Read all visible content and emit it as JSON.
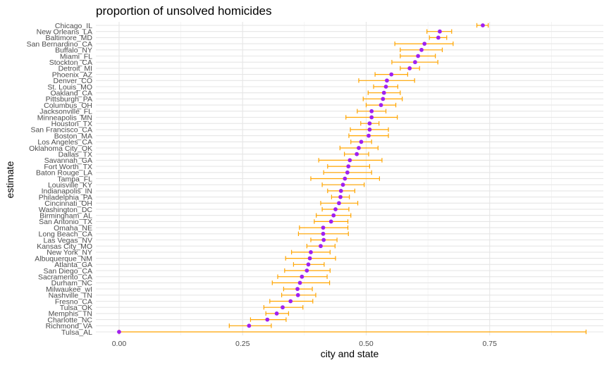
{
  "chart_data": {
    "type": "scatter",
    "title": "proportion of unsolved homicides",
    "xlabel": "city and state",
    "ylabel": "estimate",
    "xlim": [
      -0.047,
      0.98
    ],
    "xticks": [
      0.0,
      0.25,
      0.5,
      0.75
    ],
    "xtick_labels": [
      "0.00",
      "0.25",
      "0.50",
      "0.75"
    ],
    "grid": true,
    "colors": {
      "point": "#a020f0",
      "errorbar": "#ffa500",
      "grid_major": "#e6e6e6",
      "grid_minor": "#f2f2f2"
    },
    "points": [
      {
        "city": "Chicago_IL",
        "estimate": 0.736,
        "lower": 0.724,
        "upper": 0.747
      },
      {
        "city": "New Orleans_LA",
        "estimate": 0.649,
        "lower": 0.623,
        "upper": 0.673
      },
      {
        "city": "Baltimore_MD",
        "estimate": 0.646,
        "lower": 0.628,
        "upper": 0.663
      },
      {
        "city": "San Bernardino_CA",
        "estimate": 0.618,
        "lower": 0.558,
        "upper": 0.676
      },
      {
        "city": "Buffalo_NY",
        "estimate": 0.612,
        "lower": 0.569,
        "upper": 0.654
      },
      {
        "city": "Miami_FL",
        "estimate": 0.605,
        "lower": 0.569,
        "upper": 0.64
      },
      {
        "city": "Stockton_CA",
        "estimate": 0.599,
        "lower": 0.552,
        "upper": 0.645
      },
      {
        "city": "Detroit_MI",
        "estimate": 0.588,
        "lower": 0.569,
        "upper": 0.608
      },
      {
        "city": "Phoenix_AZ",
        "estimate": 0.551,
        "lower": 0.518,
        "upper": 0.584
      },
      {
        "city": "Denver_CO",
        "estimate": 0.542,
        "lower": 0.485,
        "upper": 0.598
      },
      {
        "city": "St. Louis_MO",
        "estimate": 0.54,
        "lower": 0.515,
        "upper": 0.564
      },
      {
        "city": "Oakland_CA",
        "estimate": 0.536,
        "lower": 0.504,
        "upper": 0.569
      },
      {
        "city": "Pittsburgh_PA",
        "estimate": 0.534,
        "lower": 0.494,
        "upper": 0.573
      },
      {
        "city": "Columbus_OH",
        "estimate": 0.53,
        "lower": 0.5,
        "upper": 0.56
      },
      {
        "city": "Jacksonville_FL",
        "estimate": 0.511,
        "lower": 0.482,
        "upper": 0.54
      },
      {
        "city": "Minneapolis_MN",
        "estimate": 0.511,
        "lower": 0.459,
        "upper": 0.563
      },
      {
        "city": "Houston_TX",
        "estimate": 0.507,
        "lower": 0.489,
        "upper": 0.526
      },
      {
        "city": "San Francisco_CA",
        "estimate": 0.507,
        "lower": 0.468,
        "upper": 0.545
      },
      {
        "city": "Boston_MA",
        "estimate": 0.505,
        "lower": 0.465,
        "upper": 0.545
      },
      {
        "city": "Los Angeles_CA",
        "estimate": 0.49,
        "lower": 0.469,
        "upper": 0.511
      },
      {
        "city": "Oklahoma City_OK",
        "estimate": 0.485,
        "lower": 0.447,
        "upper": 0.524
      },
      {
        "city": "Dallas_TX",
        "estimate": 0.481,
        "lower": 0.456,
        "upper": 0.505
      },
      {
        "city": "Savannah_GA",
        "estimate": 0.467,
        "lower": 0.404,
        "upper": 0.532
      },
      {
        "city": "Fort Worth_TX",
        "estimate": 0.464,
        "lower": 0.422,
        "upper": 0.507
      },
      {
        "city": "Baton Rouge_LA",
        "estimate": 0.462,
        "lower": 0.414,
        "upper": 0.511
      },
      {
        "city": "Tampa_FL",
        "estimate": 0.457,
        "lower": 0.388,
        "upper": 0.527
      },
      {
        "city": "Louisville_KY",
        "estimate": 0.453,
        "lower": 0.411,
        "upper": 0.496
      },
      {
        "city": "Indianapolis_IN",
        "estimate": 0.449,
        "lower": 0.422,
        "upper": 0.477
      },
      {
        "city": "Philadelphia_PA",
        "estimate": 0.448,
        "lower": 0.43,
        "upper": 0.466
      },
      {
        "city": "Cincinnati_OH",
        "estimate": 0.445,
        "lower": 0.408,
        "upper": 0.483
      },
      {
        "city": "Washington_DC",
        "estimate": 0.438,
        "lower": 0.411,
        "upper": 0.465
      },
      {
        "city": "Birmingham_AL",
        "estimate": 0.434,
        "lower": 0.399,
        "upper": 0.469
      },
      {
        "city": "San Antonio_TX",
        "estimate": 0.429,
        "lower": 0.395,
        "upper": 0.463
      },
      {
        "city": "Omaha_NE",
        "estimate": 0.413,
        "lower": 0.365,
        "upper": 0.463
      },
      {
        "city": "Long Beach_CA",
        "estimate": 0.413,
        "lower": 0.363,
        "upper": 0.464
      },
      {
        "city": "Las Vegas_NV",
        "estimate": 0.414,
        "lower": 0.388,
        "upper": 0.441
      },
      {
        "city": "Kansas City_MO",
        "estimate": 0.408,
        "lower": 0.38,
        "upper": 0.437
      },
      {
        "city": "New York_NY",
        "estimate": 0.388,
        "lower": 0.349,
        "upper": 0.427
      },
      {
        "city": "Albuquerque_NM",
        "estimate": 0.386,
        "lower": 0.337,
        "upper": 0.438
      },
      {
        "city": "Atlanta_GA",
        "estimate": 0.383,
        "lower": 0.353,
        "upper": 0.415
      },
      {
        "city": "San Diego_CA",
        "estimate": 0.38,
        "lower": 0.335,
        "upper": 0.427
      },
      {
        "city": "Sacramento_CA",
        "estimate": 0.37,
        "lower": 0.321,
        "upper": 0.421
      },
      {
        "city": "Durham_NC",
        "estimate": 0.366,
        "lower": 0.31,
        "upper": 0.426
      },
      {
        "city": "Milwaukee_wI",
        "estimate": 0.361,
        "lower": 0.333,
        "upper": 0.391
      },
      {
        "city": "Nashville_TN",
        "estimate": 0.362,
        "lower": 0.329,
        "upper": 0.398
      },
      {
        "city": "Fresno_CA",
        "estimate": 0.347,
        "lower": 0.305,
        "upper": 0.392
      },
      {
        "city": "Tulsa_OK",
        "estimate": 0.331,
        "lower": 0.293,
        "upper": 0.372
      },
      {
        "city": "Memphis_TN",
        "estimate": 0.319,
        "lower": 0.297,
        "upper": 0.343
      },
      {
        "city": "Charlotte_NC",
        "estimate": 0.3,
        "lower": 0.266,
        "upper": 0.338
      },
      {
        "city": "Richmond_VA",
        "estimate": 0.263,
        "lower": 0.223,
        "upper": 0.308
      },
      {
        "city": "Tulsa_AL",
        "estimate": 0.0,
        "lower": 0.0,
        "upper": 0.945
      }
    ]
  }
}
